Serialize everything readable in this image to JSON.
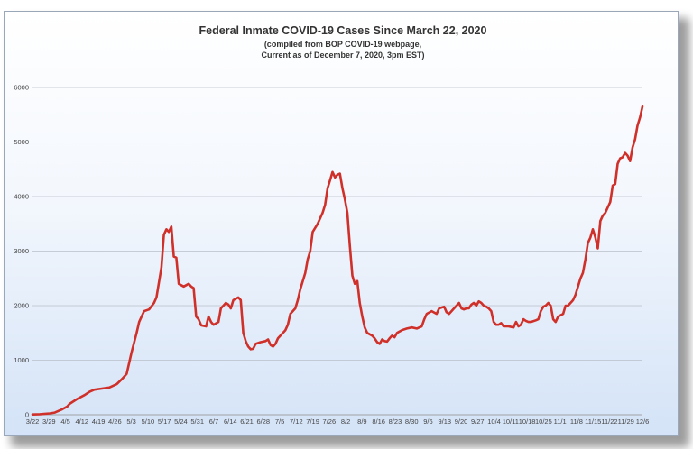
{
  "chart_data": {
    "type": "line",
    "title": "Federal Inmate COVID-19 Cases Since March 22, 2020",
    "subtitle_lines": [
      "(compiled from BOP COVID-19 webpage,",
      "Current as of December 7, 2020, 3pm EST)"
    ],
    "xlabel": "",
    "ylabel": "",
    "ylim": [
      0,
      6000
    ],
    "y_ticks": [
      0,
      1000,
      2000,
      3000,
      4000,
      5000,
      6000
    ],
    "grid": true,
    "legend": "none",
    "x_tick_labels": [
      "3/22",
      "3/29",
      "4/5",
      "4/12",
      "4/19",
      "4/26",
      "5/3",
      "5/10",
      "5/17",
      "5/24",
      "5/31",
      "6/7",
      "6/14",
      "6/21",
      "6/28",
      "7/5",
      "7/12",
      "7/19",
      "7/26",
      "8/2",
      "8/9",
      "8/16",
      "8/23",
      "8/30",
      "9/6",
      "9/13",
      "9/20",
      "9/27",
      "10/4",
      "10/11",
      "10/18",
      "10/25",
      "11/1",
      "11/8",
      "11/15",
      "11/22",
      "11/29",
      "12/6"
    ],
    "line_color": "#d0302a",
    "series": [
      {
        "points": [
          [
            0,
            5
          ],
          [
            3,
            10
          ],
          [
            7,
            25
          ],
          [
            9,
            40
          ],
          [
            12,
            100
          ],
          [
            14,
            150
          ],
          [
            15,
            200
          ],
          [
            18,
            290
          ],
          [
            21,
            360
          ],
          [
            23,
            420
          ],
          [
            25,
            460
          ],
          [
            28,
            480
          ],
          [
            31,
            500
          ],
          [
            34,
            560
          ],
          [
            36,
            650
          ],
          [
            38,
            750
          ],
          [
            40,
            1150
          ],
          [
            42,
            1500
          ],
          [
            43,
            1700
          ],
          [
            45,
            1900
          ],
          [
            47,
            1930
          ],
          [
            49,
            2050
          ],
          [
            50,
            2150
          ],
          [
            52,
            2700
          ],
          [
            53,
            3300
          ],
          [
            54,
            3400
          ],
          [
            55,
            3350
          ],
          [
            56,
            3450
          ],
          [
            57,
            2900
          ],
          [
            58,
            2880
          ],
          [
            59,
            2400
          ],
          [
            61,
            2350
          ],
          [
            63,
            2400
          ],
          [
            64,
            2350
          ],
          [
            65,
            2320
          ],
          [
            66,
            1800
          ],
          [
            67,
            1750
          ],
          [
            68,
            1640
          ],
          [
            70,
            1620
          ],
          [
            71,
            1800
          ],
          [
            72,
            1700
          ],
          [
            73,
            1650
          ],
          [
            75,
            1700
          ],
          [
            76,
            1950
          ],
          [
            77,
            2000
          ],
          [
            78,
            2050
          ],
          [
            79,
            2020
          ],
          [
            80,
            1950
          ],
          [
            81,
            2100
          ],
          [
            83,
            2150
          ],
          [
            84,
            2100
          ],
          [
            85,
            1500
          ],
          [
            86,
            1350
          ],
          [
            87,
            1250
          ],
          [
            88,
            1200
          ],
          [
            89,
            1210
          ],
          [
            90,
            1300
          ],
          [
            92,
            1330
          ],
          [
            94,
            1350
          ],
          [
            95,
            1380
          ],
          [
            96,
            1280
          ],
          [
            97,
            1250
          ],
          [
            98,
            1300
          ],
          [
            99,
            1400
          ],
          [
            100,
            1450
          ],
          [
            102,
            1550
          ],
          [
            103,
            1650
          ],
          [
            104,
            1850
          ],
          [
            106,
            1950
          ],
          [
            107,
            2100
          ],
          [
            108,
            2300
          ],
          [
            110,
            2600
          ],
          [
            111,
            2850
          ],
          [
            112,
            3000
          ],
          [
            113,
            3350
          ],
          [
            115,
            3500
          ],
          [
            117,
            3700
          ],
          [
            118,
            3850
          ],
          [
            119,
            4150
          ],
          [
            120,
            4300
          ],
          [
            121,
            4450
          ],
          [
            122,
            4350
          ],
          [
            123,
            4400
          ],
          [
            124,
            4420
          ],
          [
            125,
            4150
          ],
          [
            126,
            3950
          ],
          [
            127,
            3700
          ],
          [
            128,
            3100
          ],
          [
            129,
            2550
          ],
          [
            130,
            2400
          ],
          [
            131,
            2450
          ],
          [
            132,
            2050
          ],
          [
            133,
            1800
          ],
          [
            134,
            1600
          ],
          [
            135,
            1500
          ],
          [
            137,
            1450
          ],
          [
            138,
            1400
          ],
          [
            139,
            1330
          ],
          [
            140,
            1300
          ],
          [
            141,
            1380
          ],
          [
            142,
            1350
          ],
          [
            143,
            1340
          ],
          [
            144,
            1400
          ],
          [
            145,
            1450
          ],
          [
            146,
            1420
          ],
          [
            147,
            1500
          ],
          [
            149,
            1550
          ],
          [
            151,
            1580
          ],
          [
            153,
            1600
          ],
          [
            155,
            1580
          ],
          [
            157,
            1620
          ],
          [
            158,
            1750
          ],
          [
            159,
            1850
          ],
          [
            161,
            1900
          ],
          [
            163,
            1850
          ],
          [
            164,
            1950
          ],
          [
            166,
            1980
          ],
          [
            167,
            1880
          ],
          [
            168,
            1850
          ],
          [
            169,
            1900
          ],
          [
            170,
            1950
          ],
          [
            171,
            2000
          ],
          [
            172,
            2050
          ],
          [
            173,
            1950
          ],
          [
            174,
            1930
          ],
          [
            175,
            1950
          ],
          [
            176,
            1950
          ],
          [
            177,
            2020
          ],
          [
            178,
            2050
          ],
          [
            179,
            2000
          ],
          [
            180,
            2080
          ],
          [
            181,
            2050
          ],
          [
            182,
            2000
          ],
          [
            183,
            1980
          ],
          [
            184,
            1950
          ],
          [
            185,
            1900
          ],
          [
            186,
            1700
          ],
          [
            187,
            1650
          ],
          [
            188,
            1650
          ],
          [
            189,
            1680
          ],
          [
            190,
            1620
          ],
          [
            192,
            1620
          ],
          [
            194,
            1600
          ],
          [
            195,
            1700
          ],
          [
            196,
            1620
          ],
          [
            197,
            1650
          ],
          [
            198,
            1750
          ],
          [
            199,
            1720
          ],
          [
            200,
            1700
          ],
          [
            201,
            1700
          ],
          [
            203,
            1730
          ],
          [
            204,
            1750
          ],
          [
            205,
            1900
          ],
          [
            206,
            1980
          ],
          [
            207,
            2000
          ],
          [
            208,
            2050
          ],
          [
            209,
            2000
          ],
          [
            210,
            1750
          ],
          [
            211,
            1700
          ],
          [
            212,
            1800
          ],
          [
            214,
            1850
          ],
          [
            215,
            2000
          ],
          [
            216,
            2000
          ],
          [
            217,
            2050
          ],
          [
            218,
            2100
          ],
          [
            219,
            2200
          ],
          [
            220,
            2350
          ],
          [
            221,
            2500
          ],
          [
            222,
            2600
          ],
          [
            223,
            2850
          ],
          [
            224,
            3150
          ],
          [
            225,
            3250
          ],
          [
            226,
            3400
          ],
          [
            227,
            3250
          ],
          [
            228,
            3050
          ],
          [
            229,
            3550
          ],
          [
            230,
            3650
          ],
          [
            231,
            3700
          ],
          [
            232,
            3800
          ],
          [
            233,
            3900
          ],
          [
            234,
            4200
          ],
          [
            235,
            4230
          ],
          [
            236,
            4600
          ],
          [
            237,
            4700
          ],
          [
            238,
            4720
          ],
          [
            239,
            4800
          ],
          [
            240,
            4750
          ],
          [
            241,
            4650
          ],
          [
            242,
            4900
          ],
          [
            243,
            5050
          ],
          [
            244,
            5300
          ],
          [
            245,
            5450
          ],
          [
            246,
            5650
          ]
        ]
      }
    ]
  }
}
